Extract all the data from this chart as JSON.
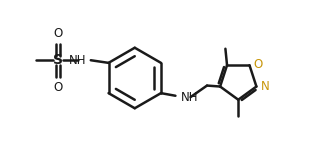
{
  "bg_color": "#ffffff",
  "line_color": "#1a1a1a",
  "heteroatom_color": "#c8960a",
  "bond_width": 1.8,
  "font_size": 8.5,
  "fig_width": 3.32,
  "fig_height": 1.56,
  "dpi": 100,
  "xlim": [
    0,
    10.0
  ],
  "ylim": [
    0,
    4.7
  ]
}
